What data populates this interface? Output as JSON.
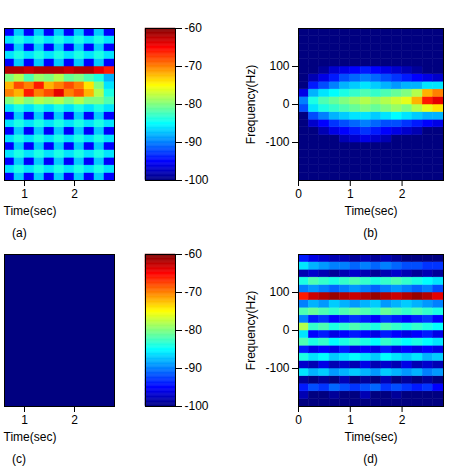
{
  "chart_data": [
    {
      "type": "heatmap",
      "panel_label": "(a)",
      "x_label": "Time(sec)",
      "tick_labels": "x",
      "xlim": [
        0.6,
        2.8
      ],
      "xticks": [
        1,
        2
      ],
      "ylim": [
        -200,
        200
      ],
      "x_bins": [
        0.6,
        0.8,
        1.0,
        1.2,
        1.4,
        1.6,
        1.8,
        2.0,
        2.2,
        2.4,
        2.6,
        2.8
      ],
      "y_bins": [
        -200,
        -180,
        -160,
        -140,
        -120,
        -100,
        -80,
        -60,
        -40,
        -20,
        0,
        20,
        40,
        60,
        80,
        100,
        120,
        140,
        160,
        180,
        200
      ],
      "cells": [
        [
          -95,
          -87,
          -95,
          -87,
          -95,
          -87,
          -95,
          -87,
          -95,
          -87,
          -95
        ],
        [
          -86,
          -84,
          -86,
          -84,
          -86,
          -84,
          -86,
          -84,
          -86,
          -84,
          -86
        ],
        [
          -95,
          -87,
          -95,
          -87,
          -95,
          -87,
          -95,
          -87,
          -95,
          -87,
          -95
        ],
        [
          -86,
          -84,
          -86,
          -84,
          -86,
          -84,
          -86,
          -84,
          -86,
          -84,
          -86
        ],
        [
          -95,
          -87,
          -95,
          -87,
          -95,
          -87,
          -95,
          -87,
          -95,
          -87,
          -95
        ],
        [
          -86,
          -84,
          -86,
          -84,
          -86,
          -84,
          -86,
          -84,
          -86,
          -84,
          -86
        ],
        [
          -95,
          -87,
          -95,
          -87,
          -95,
          -87,
          -95,
          -87,
          -95,
          -87,
          -95
        ],
        [
          -86,
          -84,
          -86,
          -84,
          -86,
          -84,
          -86,
          -84,
          -86,
          -84,
          -86
        ],
        [
          -95,
          -87,
          -95,
          -87,
          -95,
          -87,
          -95,
          -87,
          -95,
          -87,
          -95
        ],
        [
          -86,
          -84,
          -86,
          -84,
          -86,
          -84,
          -86,
          -84,
          -86,
          -84,
          -86
        ],
        [
          -80,
          -78,
          -80,
          -78,
          -79,
          -78,
          -80,
          -78,
          -80,
          -80,
          -82
        ],
        [
          -70,
          -72,
          -66,
          -70,
          -68,
          -64,
          -70,
          -68,
          -72,
          -78,
          -84
        ],
        [
          -72,
          -68,
          -70,
          -66,
          -72,
          -70,
          -68,
          -70,
          -74,
          -80,
          -86
        ],
        [
          -80,
          -78,
          -82,
          -79,
          -80,
          -78,
          -81,
          -80,
          -82,
          -84,
          -88
        ],
        [
          -62,
          -62,
          -63,
          -62,
          -62,
          -62,
          -63,
          -62,
          -62,
          -64,
          -66
        ],
        [
          -95,
          -87,
          -95,
          -87,
          -95,
          -87,
          -95,
          -87,
          -95,
          -87,
          -95
        ],
        [
          -86,
          -84,
          -86,
          -84,
          -86,
          -84,
          -86,
          -84,
          -86,
          -84,
          -86
        ],
        [
          -95,
          -87,
          -95,
          -87,
          -95,
          -87,
          -95,
          -87,
          -95,
          -87,
          -95
        ],
        [
          -86,
          -84,
          -86,
          -84,
          -86,
          -84,
          -86,
          -84,
          -86,
          -84,
          -86
        ],
        [
          -95,
          -87,
          -95,
          -87,
          -95,
          -87,
          -95,
          -87,
          -95,
          -87,
          -95
        ]
      ],
      "colorbar": {
        "range": [
          -100,
          -60
        ],
        "ticks": [
          -100,
          -90,
          -80,
          -70,
          -60
        ]
      }
    },
    {
      "type": "heatmap",
      "panel_label": "(b)",
      "x_label": "Time(sec)",
      "y_label": "Frequency(Hz)",
      "xlim": [
        0,
        2.8
      ],
      "xticks": [
        0,
        1,
        2
      ],
      "ylim": [
        -200,
        200
      ],
      "yticks": [
        -100,
        0,
        100
      ],
      "x_bins": [
        0,
        0.2,
        0.4,
        0.6,
        0.8,
        1.0,
        1.2,
        1.4,
        1.6,
        1.8,
        2.0,
        2.2,
        2.4,
        2.6,
        2.8
      ],
      "y_bins": [
        -200,
        -180,
        -160,
        -140,
        -120,
        -100,
        -80,
        -60,
        -40,
        -20,
        0,
        20,
        40,
        60,
        80,
        100,
        120,
        140,
        160,
        180,
        200
      ],
      "cells": [
        [
          -100,
          -100,
          -100,
          -100,
          -100,
          -100,
          -100,
          -100,
          -100,
          -100,
          -100,
          -100,
          -100,
          -100
        ],
        [
          -100,
          -100,
          -100,
          -100,
          -100,
          -100,
          -100,
          -100,
          -100,
          -100,
          -100,
          -100,
          -100,
          -100
        ],
        [
          -100,
          -100,
          -100,
          -100,
          -100,
          -100,
          -100,
          -100,
          -100,
          -100,
          -100,
          -100,
          -100,
          -100
        ],
        [
          -100,
          -100,
          -100,
          -100,
          -100,
          -100,
          -100,
          -100,
          -100,
          -100,
          -100,
          -100,
          -100,
          -100
        ],
        [
          -100,
          -100,
          -100,
          -100,
          -100,
          -100,
          -100,
          -100,
          -100,
          -100,
          -100,
          -100,
          -100,
          -100
        ],
        [
          -100,
          -100,
          -100,
          -100,
          -98,
          -97,
          -96,
          -97,
          -98,
          -100,
          -100,
          -100,
          -100,
          -100
        ],
        [
          -100,
          -100,
          -98,
          -96,
          -95,
          -94,
          -93,
          -94,
          -95,
          -96,
          -97,
          -98,
          -100,
          -100
        ],
        [
          -100,
          -97,
          -95,
          -93,
          -92,
          -91,
          -90,
          -91,
          -92,
          -92,
          -93,
          -94,
          -95,
          -96
        ],
        [
          -100,
          -92,
          -90,
          -88,
          -87,
          -86,
          -86,
          -87,
          -86,
          -85,
          -86,
          -87,
          -88,
          -88
        ],
        [
          -92,
          -86,
          -84,
          -83,
          -82,
          -81,
          -80,
          -81,
          -80,
          -79,
          -80,
          -78,
          -76,
          -74
        ],
        [
          -90,
          -84,
          -82,
          -81,
          -80,
          -79,
          -78,
          -79,
          -78,
          -77,
          -76,
          -72,
          -66,
          -64
        ],
        [
          -96,
          -88,
          -86,
          -85,
          -84,
          -83,
          -82,
          -83,
          -82,
          -81,
          -80,
          -78,
          -72,
          -70
        ],
        [
          -100,
          -94,
          -92,
          -90,
          -88,
          -87,
          -86,
          -87,
          -88,
          -89,
          -88,
          -88,
          -86,
          -86
        ],
        [
          -100,
          -98,
          -96,
          -94,
          -92,
          -91,
          -90,
          -91,
          -92,
          -93,
          -94,
          -95,
          -96,
          -97
        ],
        [
          -100,
          -100,
          -99,
          -97,
          -96,
          -95,
          -94,
          -95,
          -96,
          -97,
          -98,
          -99,
          -100,
          -100
        ],
        [
          -100,
          -100,
          -100,
          -100,
          -100,
          -100,
          -100,
          -100,
          -100,
          -100,
          -100,
          -100,
          -100,
          -100
        ],
        [
          -100,
          -100,
          -100,
          -100,
          -100,
          -100,
          -100,
          -100,
          -100,
          -100,
          -100,
          -100,
          -100,
          -100
        ],
        [
          -100,
          -100,
          -100,
          -100,
          -100,
          -100,
          -100,
          -100,
          -100,
          -100,
          -100,
          -100,
          -100,
          -100
        ],
        [
          -100,
          -100,
          -100,
          -100,
          -100,
          -100,
          -100,
          -100,
          -100,
          -100,
          -100,
          -100,
          -100,
          -100
        ],
        [
          -100,
          -100,
          -100,
          -100,
          -100,
          -100,
          -100,
          -100,
          -100,
          -100,
          -100,
          -100,
          -100,
          -100
        ]
      ]
    },
    {
      "type": "heatmap",
      "panel_label": "(c)",
      "x_label": "Time(sec)",
      "tick_labels": "x",
      "xlim": [
        0.6,
        2.8
      ],
      "xticks": [
        1,
        2
      ],
      "ylim": [
        -200,
        200
      ],
      "x_bins": [
        0.6,
        2.8
      ],
      "y_bins": [
        -200,
        200
      ],
      "cells": [
        [
          -100
        ]
      ],
      "colorbar": {
        "range": [
          -100,
          -60
        ],
        "ticks": [
          -100,
          -90,
          -80,
          -70,
          -60
        ]
      }
    },
    {
      "type": "heatmap",
      "panel_label": "(d)",
      "x_label": "Time(sec)",
      "y_label": "Frequency(Hz)",
      "xlim": [
        0,
        2.8
      ],
      "xticks": [
        0,
        1,
        2
      ],
      "ylim": [
        -200,
        200
      ],
      "yticks": [
        -100,
        0,
        100
      ],
      "x_bins": [
        0,
        0.2,
        0.4,
        0.6,
        0.8,
        1.0,
        1.2,
        1.4,
        1.6,
        1.8,
        2.0,
        2.2,
        2.4,
        2.6,
        2.8
      ],
      "y_bins": [
        -200,
        -180,
        -160,
        -140,
        -120,
        -100,
        -80,
        -60,
        -40,
        -20,
        0,
        20,
        40,
        60,
        80,
        100,
        120,
        140,
        160,
        180,
        200
      ],
      "cells": [
        [
          -100,
          -100,
          -100,
          -100,
          -100,
          -100,
          -100,
          -100,
          -100,
          -100,
          -100,
          -100,
          -100,
          -100
        ],
        [
          -98,
          -100,
          -100,
          -99,
          -100,
          -100,
          -98,
          -100,
          -100,
          -99,
          -100,
          -100,
          -100,
          -100
        ],
        [
          -94,
          -92,
          -93,
          -91,
          -92,
          -93,
          -92,
          -91,
          -93,
          -92,
          -93,
          -94,
          -93,
          -95
        ],
        [
          -99,
          -100,
          -99,
          -100,
          -98,
          -100,
          -99,
          -100,
          -98,
          -100,
          -99,
          -100,
          -99,
          -100
        ],
        [
          -86,
          -88,
          -87,
          -89,
          -88,
          -87,
          -88,
          -89,
          -87,
          -88,
          -89,
          -88,
          -90,
          -89
        ],
        [
          -97,
          -98,
          -96,
          -98,
          -97,
          -98,
          -96,
          -98,
          -97,
          -98,
          -96,
          -98,
          -97,
          -98
        ],
        [
          -84,
          -86,
          -85,
          -87,
          -86,
          -85,
          -86,
          -87,
          -85,
          -86,
          -87,
          -86,
          -88,
          -87
        ],
        [
          -94,
          -96,
          -95,
          -96,
          -94,
          -96,
          -95,
          -96,
          -94,
          -96,
          -95,
          -96,
          -95,
          -96
        ],
        [
          -82,
          -84,
          -83,
          -85,
          -84,
          -83,
          -84,
          -85,
          -83,
          -84,
          -85,
          -84,
          -85,
          -86
        ],
        [
          -86,
          -95,
          -94,
          -96,
          -95,
          -94,
          -95,
          -96,
          -94,
          -95,
          -96,
          -95,
          -94,
          -96
        ],
        [
          -78,
          -83,
          -82,
          -84,
          -83,
          -82,
          -83,
          -84,
          -82,
          -83,
          -84,
          -83,
          -84,
          -85
        ],
        [
          -90,
          -94,
          -93,
          -95,
          -94,
          -93,
          -94,
          -95,
          -93,
          -94,
          -95,
          -94,
          -93,
          -95
        ],
        [
          -82,
          -81,
          -82,
          -83,
          -82,
          -81,
          -82,
          -83,
          -81,
          -82,
          -83,
          -82,
          -83,
          -84
        ],
        [
          -90,
          -88,
          -89,
          -87,
          -88,
          -89,
          -88,
          -87,
          -89,
          -88,
          -87,
          -88,
          -89,
          -90
        ],
        [
          -66,
          -63,
          -62,
          -61,
          -62,
          -63,
          -62,
          -61,
          -62,
          -63,
          -62,
          -61,
          -62,
          -64
        ],
        [
          -90,
          -89,
          -90,
          -91,
          -90,
          -89,
          -90,
          -91,
          -90,
          -89,
          -90,
          -91,
          -90,
          -92
        ],
        [
          -84,
          -82,
          -83,
          -84,
          -83,
          -82,
          -83,
          -84,
          -83,
          -82,
          -83,
          -84,
          -85,
          -86
        ],
        [
          -98,
          -97,
          -98,
          -99,
          -98,
          -97,
          -98,
          -99,
          -98,
          -97,
          -98,
          -99,
          -98,
          -99
        ],
        [
          -86,
          -88,
          -89,
          -90,
          -90,
          -91,
          -90,
          -91,
          -90,
          -91,
          -92,
          -92,
          -93,
          -93
        ],
        [
          -94,
          -96,
          -97,
          -98,
          -98,
          -99,
          -98,
          -99,
          -98,
          -99,
          -100,
          -100,
          -100,
          -100
        ]
      ]
    }
  ]
}
